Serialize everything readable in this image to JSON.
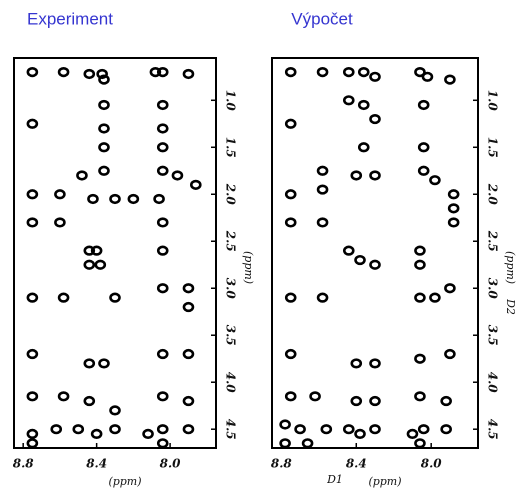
{
  "chart_data": [
    {
      "type": "scatter",
      "title": "Experiment",
      "xlabel": "(ppm)",
      "xlim": [
        8.85,
        7.75
      ],
      "ylim": [
        0.55,
        4.7
      ],
      "xticks": [
        8.8,
        8.4,
        {
          "value": 8.0,
          "label": "8.0"
        }
      ],
      "yticks": [
        {
          "value": 1.0,
          "label": "1.0"
        },
        1.5,
        {
          "value": 2.0,
          "label": "2.0"
        },
        2.5,
        {
          "value": 3.0,
          "label": "3.0"
        },
        3.5,
        {
          "value": 4.0,
          "label": "4.0"
        },
        4.5
      ],
      "ylabel": "(ppm)",
      "series": [
        {
          "color": "#000000",
          "x": [
            8.75,
            8.58,
            8.44,
            8.37,
            8.36,
            8.08,
            8.04,
            7.9,
            8.75,
            8.36,
            8.36,
            8.04,
            8.04,
            8.36,
            8.04,
            8.36,
            8.48,
            8.04,
            7.96,
            7.86,
            8.75,
            8.6,
            8.42,
            8.3,
            8.2,
            8.06,
            8.75,
            8.6,
            8.04,
            8.44,
            8.4,
            8.44,
            8.38,
            8.04,
            8.75,
            8.58,
            8.3,
            8.04,
            7.9,
            7.9,
            8.75,
            8.44,
            8.36,
            8.04,
            7.9,
            8.75,
            8.58,
            8.44,
            8.3,
            8.04,
            7.9,
            8.75,
            8.62,
            8.5,
            8.4,
            8.3,
            8.12,
            8.04,
            7.9,
            8.75,
            8.04
          ],
          "values": [
            0.7,
            0.7,
            0.72,
            0.72,
            0.78,
            0.7,
            0.7,
            0.72,
            1.25,
            1.05,
            1.3,
            1.05,
            1.3,
            1.5,
            1.5,
            1.75,
            1.8,
            1.75,
            1.8,
            1.9,
            2.0,
            2.0,
            2.05,
            2.05,
            2.05,
            2.05,
            2.3,
            2.3,
            2.3,
            2.6,
            2.6,
            2.75,
            2.75,
            2.6,
            3.1,
            3.1,
            3.1,
            3.0,
            3.0,
            3.2,
            3.7,
            3.8,
            3.8,
            3.7,
            3.7,
            4.15,
            4.15,
            4.2,
            4.3,
            4.15,
            4.2,
            4.55,
            4.5,
            4.5,
            4.55,
            4.5,
            4.55,
            4.5,
            4.5,
            4.65,
            4.65
          ]
        }
      ]
    },
    {
      "type": "scatter",
      "title": "Výpočet",
      "xlabel": "(ppm)",
      "x_axis_name": "D1",
      "xlim": [
        8.85,
        7.75
      ],
      "ylim": [
        0.55,
        4.7
      ],
      "xticks": [
        8.8,
        8.4,
        {
          "value": 8.0,
          "label": "8.0"
        }
      ],
      "yticks": [
        {
          "value": 1.0,
          "label": "1.0"
        },
        1.5,
        {
          "value": 2.0,
          "label": "2.0"
        },
        2.5,
        {
          "value": 3.0,
          "label": "3.0"
        },
        3.5,
        {
          "value": 4.0,
          "label": "4.0"
        },
        4.5
      ],
      "ylabel": "(ppm)",
      "y_axis_name": "D2",
      "series": [
        {
          "color": "#000000",
          "x": [
            8.75,
            8.58,
            8.44,
            8.36,
            8.3,
            8.06,
            8.02,
            7.9,
            8.75,
            8.44,
            8.36,
            8.3,
            8.04,
            8.36,
            8.04,
            8.58,
            8.4,
            8.3,
            8.04,
            7.98,
            8.75,
            8.58,
            7.88,
            7.88,
            8.75,
            8.58,
            7.88,
            8.44,
            8.38,
            8.3,
            8.06,
            8.06,
            8.75,
            8.58,
            8.06,
            7.98,
            7.9,
            8.75,
            8.4,
            8.3,
            8.06,
            7.9,
            8.75,
            8.62,
            8.4,
            8.3,
            8.06,
            7.92,
            8.78,
            8.7,
            8.56,
            8.44,
            8.38,
            8.3,
            8.1,
            8.04,
            7.92,
            8.78,
            8.66,
            8.06
          ],
          "values": [
            0.7,
            0.7,
            0.7,
            0.7,
            0.75,
            0.7,
            0.75,
            0.78,
            1.25,
            1.0,
            1.05,
            1.2,
            1.05,
            1.5,
            1.5,
            1.75,
            1.8,
            1.8,
            1.75,
            1.85,
            2.0,
            1.95,
            2.0,
            2.15,
            2.3,
            2.3,
            2.3,
            2.6,
            2.7,
            2.75,
            2.6,
            2.75,
            3.1,
            3.1,
            3.1,
            3.1,
            3.0,
            3.7,
            3.8,
            3.8,
            3.75,
            3.7,
            4.15,
            4.15,
            4.2,
            4.2,
            4.15,
            4.2,
            4.45,
            4.5,
            4.5,
            4.5,
            4.55,
            4.5,
            4.55,
            4.5,
            4.5,
            4.65,
            4.65,
            4.65
          ]
        }
      ]
    }
  ]
}
